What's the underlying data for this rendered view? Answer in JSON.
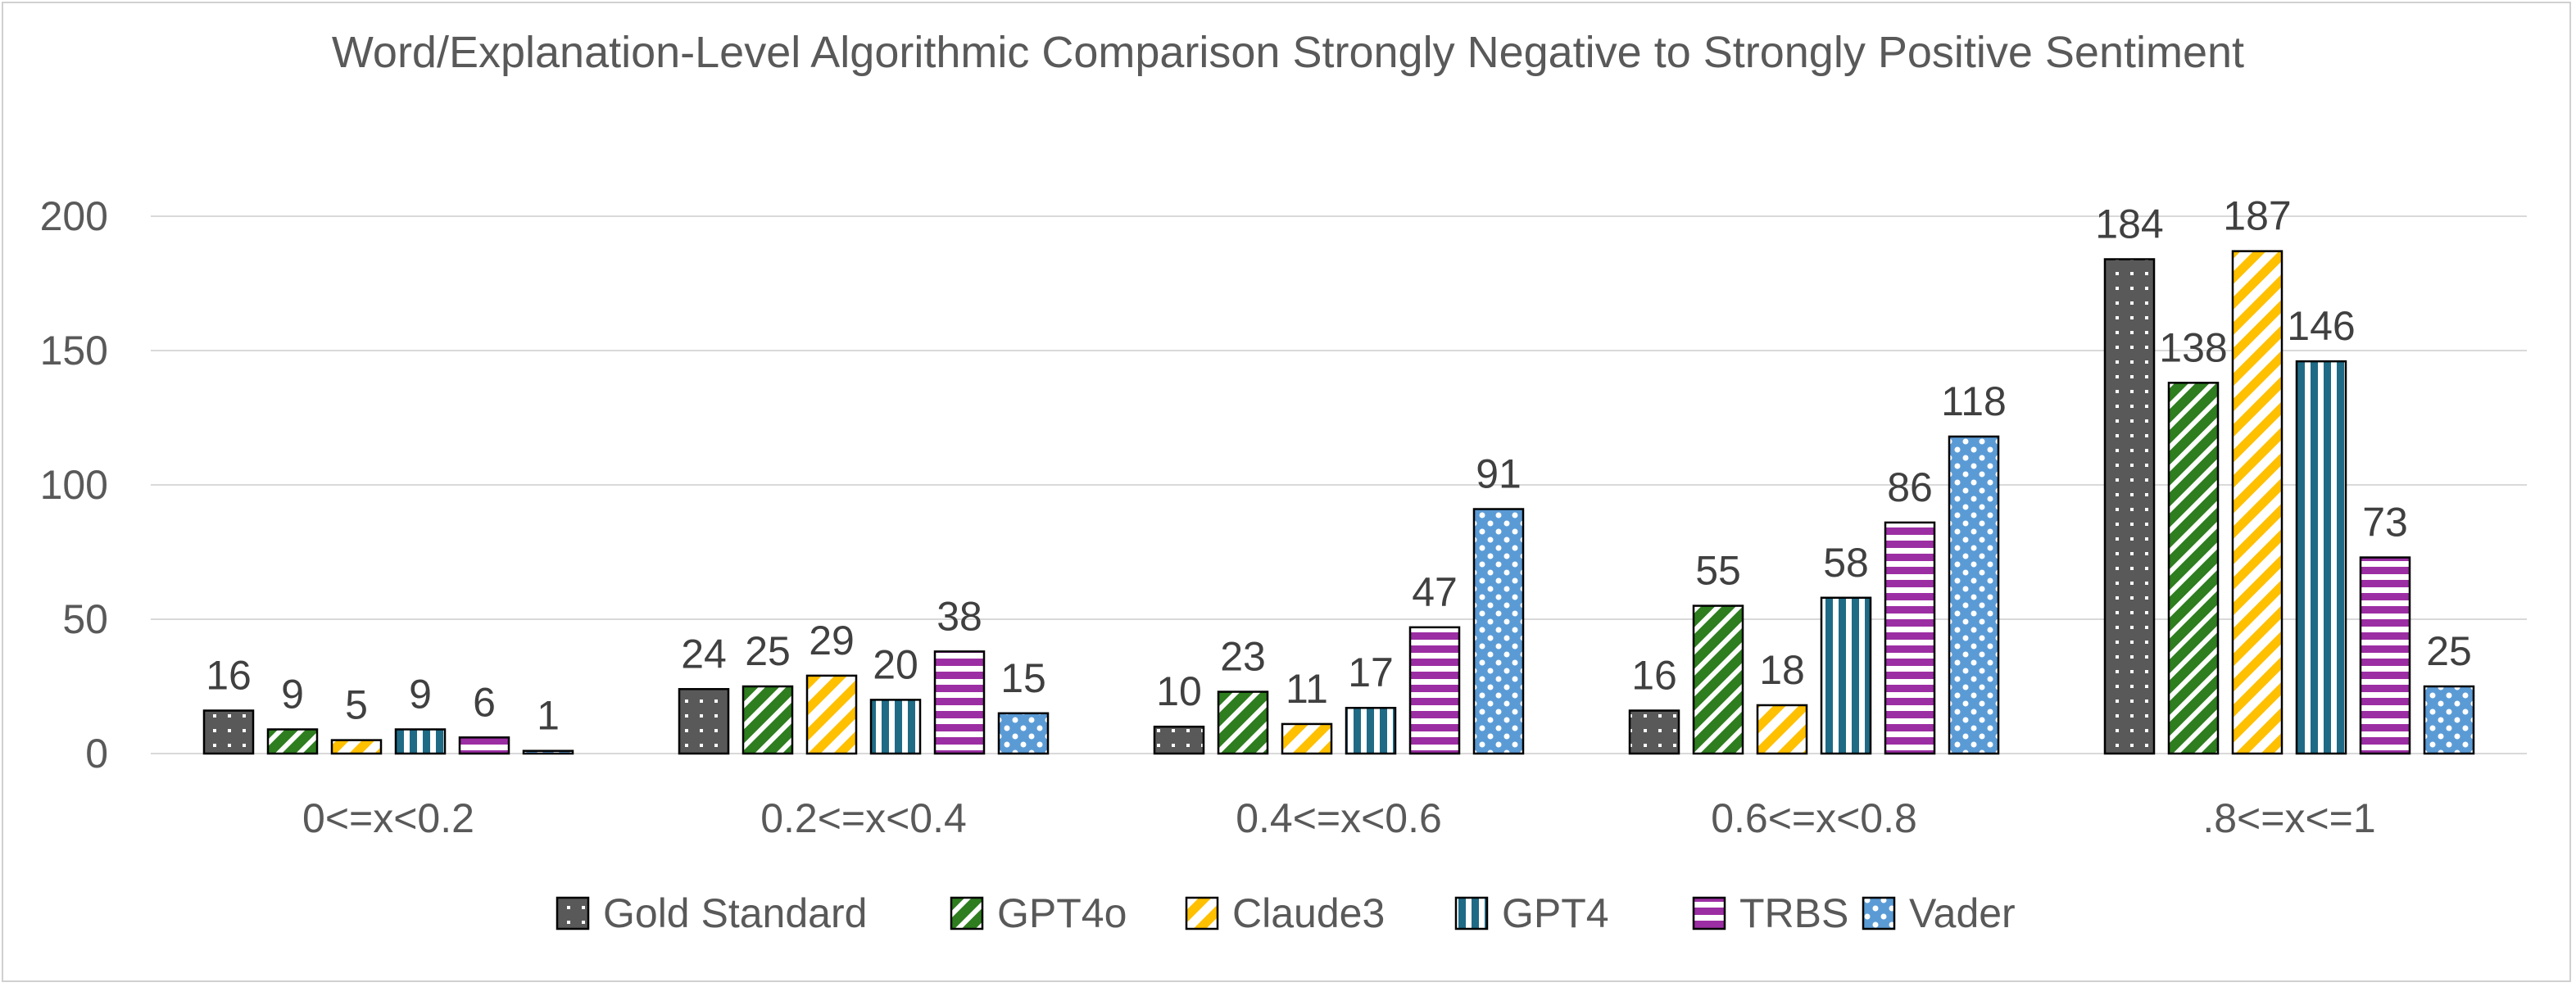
{
  "chart_data": {
    "type": "bar",
    "title": "Word/Explanation-Level Algorithmic Comparison Strongly Negative to Strongly Positive Sentiment",
    "xlabel": "",
    "ylabel": "",
    "ylim": [
      0,
      200
    ],
    "yticks": [
      0,
      50,
      100,
      150,
      200
    ],
    "grid": true,
    "legend_position": "bottom",
    "categories": [
      "0<=x<0.2",
      "0.2<=x<0.4",
      "0.4<=x<0.6",
      "0.6<=x<0.8",
      ".8<=x<=1"
    ],
    "series": [
      {
        "name": "Gold Standard",
        "color": "#595959",
        "pattern": "dots",
        "values": [
          16,
          24,
          10,
          16,
          184
        ]
      },
      {
        "name": "GPT4o",
        "color": "#2e7d1f",
        "pattern": "diagonal-stripes",
        "values": [
          9,
          25,
          23,
          55,
          138
        ]
      },
      {
        "name": "Claude3",
        "color": "#ffc000",
        "pattern": "diagonal-stripes",
        "values": [
          5,
          29,
          11,
          18,
          187
        ]
      },
      {
        "name": "GPT4",
        "color": "#1f6b86",
        "pattern": "vertical-stripes",
        "values": [
          9,
          20,
          17,
          58,
          146
        ]
      },
      {
        "name": "TRBS",
        "color": "#9c2ea3",
        "pattern": "horizontal-stripes",
        "values": [
          6,
          38,
          47,
          86,
          73
        ]
      },
      {
        "name": "Vader",
        "color": "#5b9bd5",
        "pattern": "checker-circles",
        "values": [
          1,
          15,
          91,
          118,
          25
        ]
      }
    ]
  }
}
